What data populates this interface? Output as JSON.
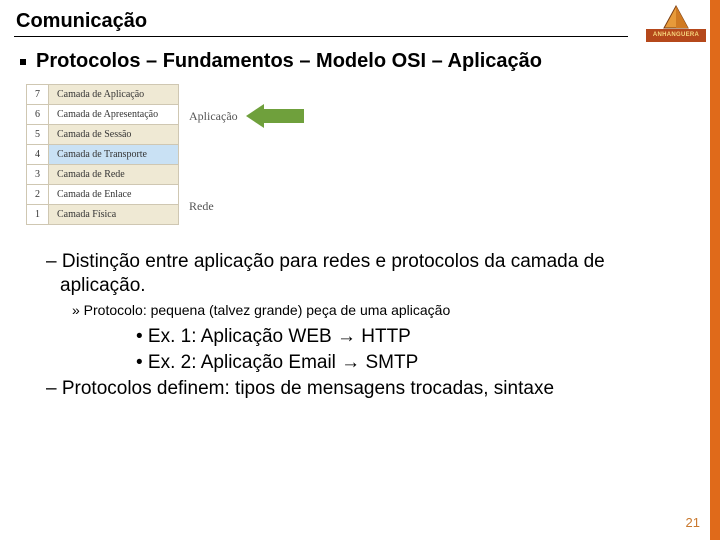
{
  "brand": {
    "label": "ANHANGUERA",
    "bar_bg": "#b5481b",
    "bar_fg": "#f7d77c",
    "tri_fill": "#e79a3a",
    "tri_stroke": "#7a3d12"
  },
  "accent_color": "#e06a1a",
  "title": "Comunicação",
  "subtitle": "Protocolos – Fundamentos – Modelo OSI – Aplicação",
  "osi": {
    "group_app_label": "Aplicação",
    "group_net_label": "Rede",
    "arrow_color": "#6fa03c",
    "layers": [
      {
        "n": "7",
        "name": "Camada de Aplicação",
        "bg": "#efe9d4"
      },
      {
        "n": "6",
        "name": "Camada de Apresentação",
        "bg": "#ffffff"
      },
      {
        "n": "5",
        "name": "Camada de Sessão",
        "bg": "#efe9d4"
      },
      {
        "n": "4",
        "name": "Camada de Transporte",
        "bg": "#c9e1f4"
      },
      {
        "n": "3",
        "name": "Camada de Rede",
        "bg": "#efe9d4"
      },
      {
        "n": "2",
        "name": "Camada de Enlace",
        "bg": "#ffffff"
      },
      {
        "n": "1",
        "name": "Camada Física",
        "bg": "#efe9d4"
      }
    ]
  },
  "body": {
    "dash1": "– Distinção entre aplicação para redes e protocolos da camada de aplicação.",
    "sub": "» Protocolo: pequena (talvez grande) peça de uma aplicação",
    "ex1": "• Ex. 1: Aplicação WEB → HTTP",
    "ex2": "• Ex. 2: Aplicação Email → SMTP",
    "dash2": "– Protocolos definem: tipos de mensagens trocadas, sintaxe"
  },
  "page_number": "21"
}
